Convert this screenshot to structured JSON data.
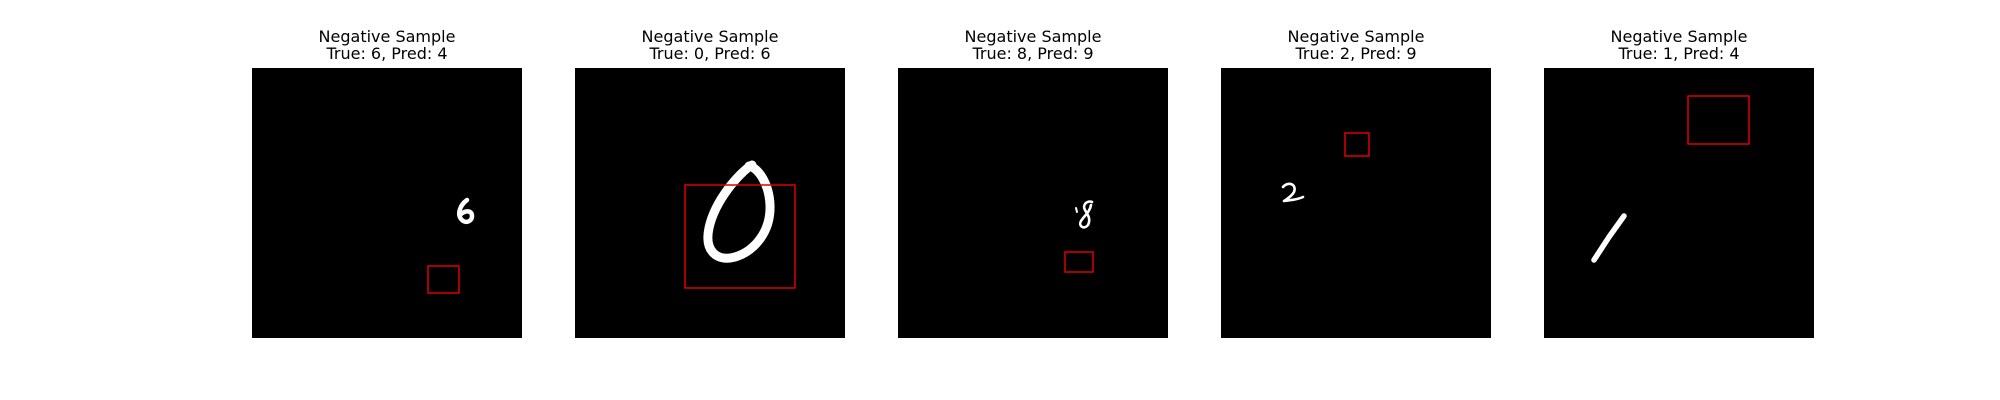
{
  "figure": {
    "samples": [
      {
        "title": "Negative Sample",
        "subtitle": "True: 6, Pred: 4",
        "digit": "6",
        "box_color": "#e00000"
      },
      {
        "title": "Negative Sample",
        "subtitle": "True: 0, Pred: 6",
        "digit": "0",
        "box_color": "#e00000"
      },
      {
        "title": "Negative Sample",
        "subtitle": "True: 8, Pred: 9",
        "digit": "8",
        "box_color": "#e00000"
      },
      {
        "title": "Negative Sample",
        "subtitle": "True: 2, Pred: 9",
        "digit": "2",
        "box_color": "#e00000"
      },
      {
        "title": "Negative Sample",
        "subtitle": "True: 1, Pred: 4",
        "digit": "1",
        "box_color": "#e00000"
      }
    ]
  }
}
